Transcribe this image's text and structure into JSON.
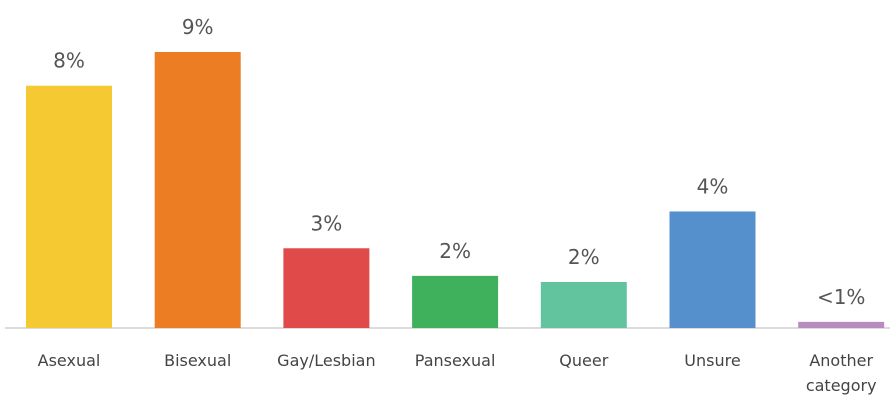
{
  "chart_data": {
    "type": "bar",
    "categories": [
      "Asexual",
      "Bisexual",
      "Gay/Lesbian",
      "Pansexual",
      "Queer",
      "Unsure",
      "Another category"
    ],
    "values": [
      7.9,
      9.0,
      2.6,
      1.7,
      1.5,
      3.8,
      0.2
    ],
    "value_labels": [
      "8%",
      "9%",
      "3%",
      "2%",
      "2%",
      "4%",
      "<1%"
    ],
    "colors": [
      "#f5c932",
      "#ec7d22",
      "#e04b4a",
      "#3fb15c",
      "#62c49e",
      "#5590cc",
      "#b98cc0"
    ]
  }
}
